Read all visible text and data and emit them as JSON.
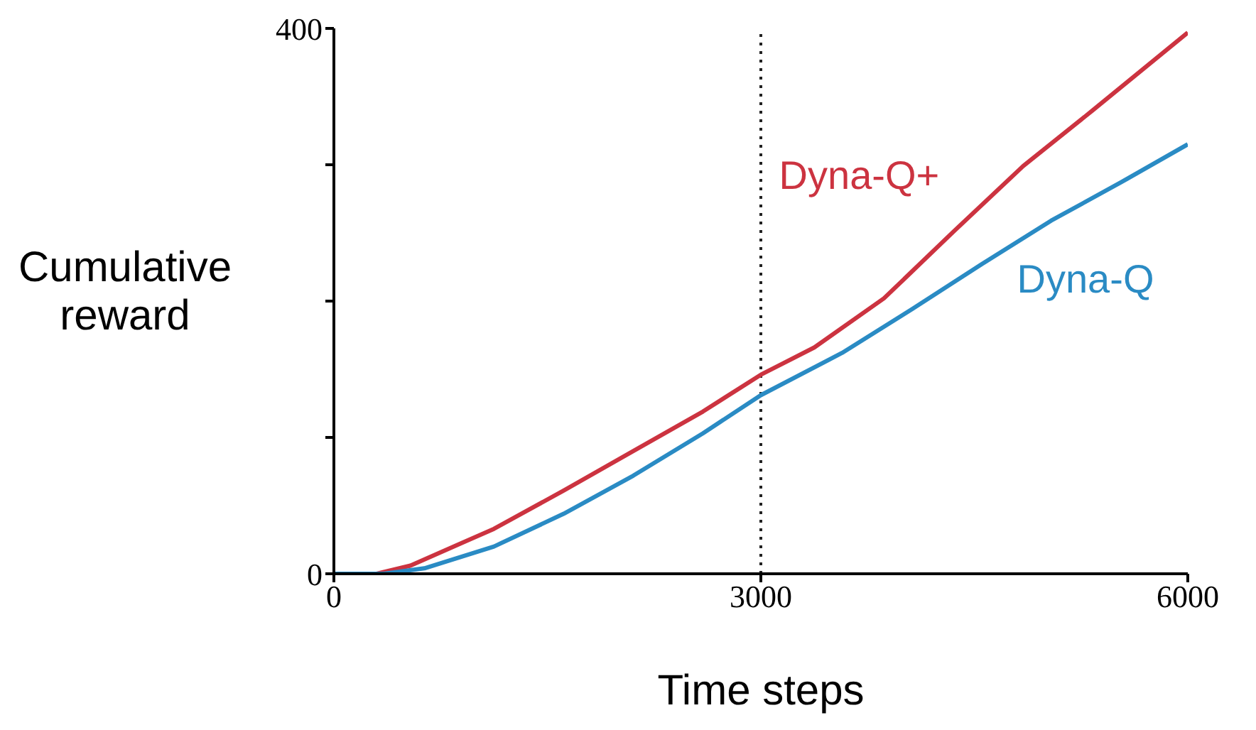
{
  "chart_data": {
    "type": "line",
    "xlabel": "Time steps",
    "ylabel": "Cumulative reward",
    "xlim": [
      0,
      6000
    ],
    "ylim": [
      0,
      400
    ],
    "xticks": [
      0,
      3000,
      6000
    ],
    "yticks": [
      0,
      {
        "value": 100,
        "label": null
      },
      {
        "value": 200,
        "label": null
      },
      {
        "value": 300,
        "label": null
      },
      400
    ],
    "marker": "none",
    "line_style": "solid",
    "ref_lines": [
      {
        "axis": "x",
        "value": 3000,
        "line_style": "dotted",
        "color": "#222222"
      }
    ],
    "series": [
      {
        "name": "Dyna-Q+",
        "color": "#cc3340",
        "x": [
          0,
          300,
          538,
          1125,
          1614,
          2104,
          2593,
          3000,
          3376,
          3865,
          4354,
          4843,
          5333,
          6000
        ],
        "values": [
          0,
          0,
          6,
          33,
          61,
          90,
          119,
          146,
          166,
          202,
          251,
          299,
          340,
          397
        ]
      },
      {
        "name": "Dyna-Q",
        "color": "#2a8bc4",
        "x": [
          0,
          350,
          636,
          1125,
          1614,
          2104,
          2593,
          3000,
          3571,
          4061,
          4550,
          5040,
          5529,
          6000
        ],
        "values": [
          0,
          0,
          4,
          20,
          44,
          72,
          103,
          131,
          162,
          194,
          227,
          259,
          287,
          315
        ]
      }
    ]
  }
}
